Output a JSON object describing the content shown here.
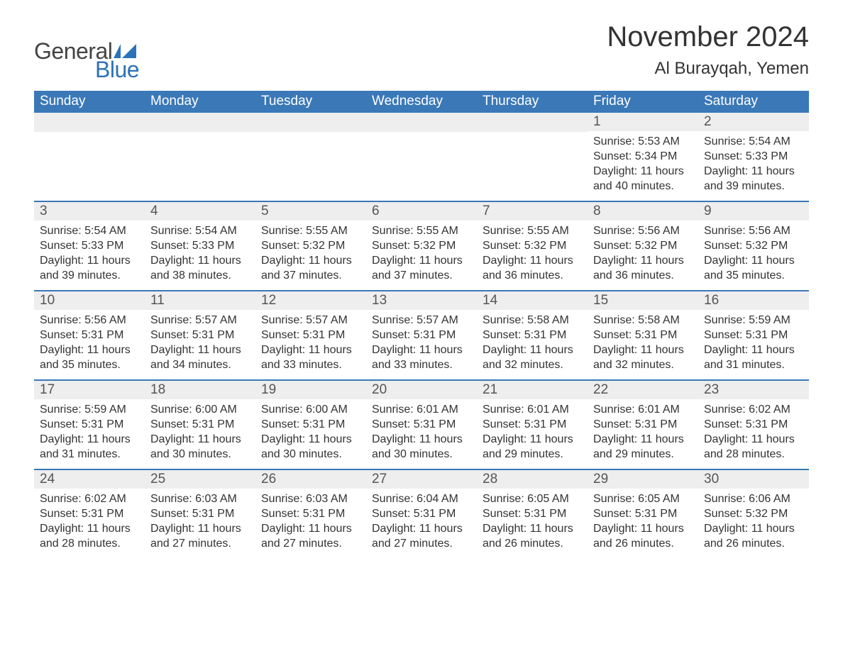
{
  "logo": {
    "text_general": "General",
    "text_blue": "Blue",
    "flag_color": "#2c72b8"
  },
  "title": "November 2024",
  "location": "Al Burayqah, Yemen",
  "colors": {
    "header_bg": "#3b78b8",
    "header_text": "#ffffff",
    "daynum_bg": "#eeeeee",
    "daynum_text": "#555555",
    "body_text": "#333333",
    "border": "#3b78b8"
  },
  "weekdays": [
    "Sunday",
    "Monday",
    "Tuesday",
    "Wednesday",
    "Thursday",
    "Friday",
    "Saturday"
  ],
  "weeks": [
    [
      null,
      null,
      null,
      null,
      null,
      {
        "day": "1",
        "sunrise": "Sunrise: 5:53 AM",
        "sunset": "Sunset: 5:34 PM",
        "daylight": "Daylight: 11 hours and 40 minutes."
      },
      {
        "day": "2",
        "sunrise": "Sunrise: 5:54 AM",
        "sunset": "Sunset: 5:33 PM",
        "daylight": "Daylight: 11 hours and 39 minutes."
      }
    ],
    [
      {
        "day": "3",
        "sunrise": "Sunrise: 5:54 AM",
        "sunset": "Sunset: 5:33 PM",
        "daylight": "Daylight: 11 hours and 39 minutes."
      },
      {
        "day": "4",
        "sunrise": "Sunrise: 5:54 AM",
        "sunset": "Sunset: 5:33 PM",
        "daylight": "Daylight: 11 hours and 38 minutes."
      },
      {
        "day": "5",
        "sunrise": "Sunrise: 5:55 AM",
        "sunset": "Sunset: 5:32 PM",
        "daylight": "Daylight: 11 hours and 37 minutes."
      },
      {
        "day": "6",
        "sunrise": "Sunrise: 5:55 AM",
        "sunset": "Sunset: 5:32 PM",
        "daylight": "Daylight: 11 hours and 37 minutes."
      },
      {
        "day": "7",
        "sunrise": "Sunrise: 5:55 AM",
        "sunset": "Sunset: 5:32 PM",
        "daylight": "Daylight: 11 hours and 36 minutes."
      },
      {
        "day": "8",
        "sunrise": "Sunrise: 5:56 AM",
        "sunset": "Sunset: 5:32 PM",
        "daylight": "Daylight: 11 hours and 36 minutes."
      },
      {
        "day": "9",
        "sunrise": "Sunrise: 5:56 AM",
        "sunset": "Sunset: 5:32 PM",
        "daylight": "Daylight: 11 hours and 35 minutes."
      }
    ],
    [
      {
        "day": "10",
        "sunrise": "Sunrise: 5:56 AM",
        "sunset": "Sunset: 5:31 PM",
        "daylight": "Daylight: 11 hours and 35 minutes."
      },
      {
        "day": "11",
        "sunrise": "Sunrise: 5:57 AM",
        "sunset": "Sunset: 5:31 PM",
        "daylight": "Daylight: 11 hours and 34 minutes."
      },
      {
        "day": "12",
        "sunrise": "Sunrise: 5:57 AM",
        "sunset": "Sunset: 5:31 PM",
        "daylight": "Daylight: 11 hours and 33 minutes."
      },
      {
        "day": "13",
        "sunrise": "Sunrise: 5:57 AM",
        "sunset": "Sunset: 5:31 PM",
        "daylight": "Daylight: 11 hours and 33 minutes."
      },
      {
        "day": "14",
        "sunrise": "Sunrise: 5:58 AM",
        "sunset": "Sunset: 5:31 PM",
        "daylight": "Daylight: 11 hours and 32 minutes."
      },
      {
        "day": "15",
        "sunrise": "Sunrise: 5:58 AM",
        "sunset": "Sunset: 5:31 PM",
        "daylight": "Daylight: 11 hours and 32 minutes."
      },
      {
        "day": "16",
        "sunrise": "Sunrise: 5:59 AM",
        "sunset": "Sunset: 5:31 PM",
        "daylight": "Daylight: 11 hours and 31 minutes."
      }
    ],
    [
      {
        "day": "17",
        "sunrise": "Sunrise: 5:59 AM",
        "sunset": "Sunset: 5:31 PM",
        "daylight": "Daylight: 11 hours and 31 minutes."
      },
      {
        "day": "18",
        "sunrise": "Sunrise: 6:00 AM",
        "sunset": "Sunset: 5:31 PM",
        "daylight": "Daylight: 11 hours and 30 minutes."
      },
      {
        "day": "19",
        "sunrise": "Sunrise: 6:00 AM",
        "sunset": "Sunset: 5:31 PM",
        "daylight": "Daylight: 11 hours and 30 minutes."
      },
      {
        "day": "20",
        "sunrise": "Sunrise: 6:01 AM",
        "sunset": "Sunset: 5:31 PM",
        "daylight": "Daylight: 11 hours and 30 minutes."
      },
      {
        "day": "21",
        "sunrise": "Sunrise: 6:01 AM",
        "sunset": "Sunset: 5:31 PM",
        "daylight": "Daylight: 11 hours and 29 minutes."
      },
      {
        "day": "22",
        "sunrise": "Sunrise: 6:01 AM",
        "sunset": "Sunset: 5:31 PM",
        "daylight": "Daylight: 11 hours and 29 minutes."
      },
      {
        "day": "23",
        "sunrise": "Sunrise: 6:02 AM",
        "sunset": "Sunset: 5:31 PM",
        "daylight": "Daylight: 11 hours and 28 minutes."
      }
    ],
    [
      {
        "day": "24",
        "sunrise": "Sunrise: 6:02 AM",
        "sunset": "Sunset: 5:31 PM",
        "daylight": "Daylight: 11 hours and 28 minutes."
      },
      {
        "day": "25",
        "sunrise": "Sunrise: 6:03 AM",
        "sunset": "Sunset: 5:31 PM",
        "daylight": "Daylight: 11 hours and 27 minutes."
      },
      {
        "day": "26",
        "sunrise": "Sunrise: 6:03 AM",
        "sunset": "Sunset: 5:31 PM",
        "daylight": "Daylight: 11 hours and 27 minutes."
      },
      {
        "day": "27",
        "sunrise": "Sunrise: 6:04 AM",
        "sunset": "Sunset: 5:31 PM",
        "daylight": "Daylight: 11 hours and 27 minutes."
      },
      {
        "day": "28",
        "sunrise": "Sunrise: 6:05 AM",
        "sunset": "Sunset: 5:31 PM",
        "daylight": "Daylight: 11 hours and 26 minutes."
      },
      {
        "day": "29",
        "sunrise": "Sunrise: 6:05 AM",
        "sunset": "Sunset: 5:31 PM",
        "daylight": "Daylight: 11 hours and 26 minutes."
      },
      {
        "day": "30",
        "sunrise": "Sunrise: 6:06 AM",
        "sunset": "Sunset: 5:32 PM",
        "daylight": "Daylight: 11 hours and 26 minutes."
      }
    ]
  ]
}
